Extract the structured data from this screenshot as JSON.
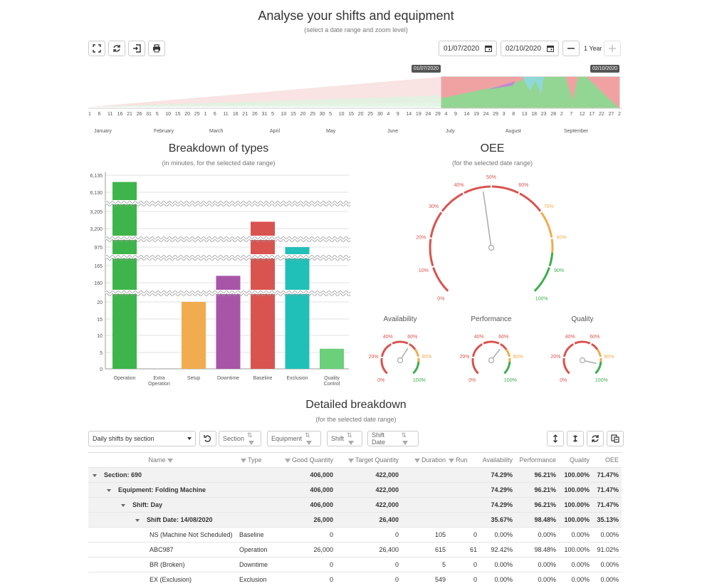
{
  "header": {
    "title": "Analyse your shifts and equipment",
    "subtitle": "(select a date range and zoom level)",
    "toolbar": [
      {
        "icon": "fullscreen-icon"
      },
      {
        "icon": "refresh-icon"
      },
      {
        "icon": "export-icon"
      },
      {
        "icon": "print-icon"
      }
    ],
    "date_from": "01/07/2020",
    "date_to": "02/10/2020",
    "zoom_label": "1 Year",
    "navigator_flags": {
      "left": "01/07/2020",
      "right": "02/10/2020"
    },
    "navigator_ticks": [
      "1",
      "6",
      "11",
      "16",
      "21",
      "26",
      "31",
      "5",
      "10",
      "15",
      "20",
      "25",
      "1",
      "6",
      "11",
      "16",
      "21",
      "26",
      "31",
      "5",
      "10",
      "15",
      "20",
      "25",
      "30",
      "5",
      "10",
      "15",
      "20",
      "25",
      "30",
      "4",
      "9",
      "14",
      "19",
      "24",
      "29",
      "4",
      "9",
      "14",
      "19",
      "24",
      "29",
      "3",
      "8",
      "13",
      "18",
      "23",
      "28",
      "2",
      "7",
      "12",
      "17",
      "22",
      "27",
      "2"
    ],
    "navigator_months": [
      "January",
      "February",
      "March",
      "April",
      "May",
      "June",
      "July",
      "August",
      "September"
    ]
  },
  "breakdown": {
    "title": "Breakdown of types",
    "subtitle": "(in minutes, for the selected date range)"
  },
  "oee": {
    "title": "OEE",
    "subtitle": "(for the selected date range)",
    "main_value": 0.47,
    "main_labels": [
      "0%",
      "10%",
      "20%",
      "30%",
      "40%",
      "50%",
      "60%",
      "70%",
      "80%",
      "90%",
      "100%"
    ],
    "small_gauges": [
      {
        "title": "Availability",
        "value": 0.62,
        "labels": [
          "0%",
          "20%",
          "40%",
          "60%",
          "80%",
          "100%"
        ]
      },
      {
        "title": "Performance",
        "value": 0.64,
        "labels": [
          "0%",
          "20%",
          "40%",
          "60%",
          "80%",
          "100%"
        ]
      },
      {
        "title": "Quality",
        "value": 0.88,
        "labels": [
          "0%",
          "20%",
          "40%",
          "60%",
          "80%",
          "100%"
        ]
      }
    ]
  },
  "chart_data": {
    "type": "bar",
    "title": "Breakdown of types",
    "subtitle": "(in minutes, for the selected date range)",
    "y_axis": "scale breaks",
    "y_ticks": [
      "6,135",
      "6,130",
      "3,205",
      "3,200",
      "975",
      "165",
      "160",
      "20",
      "15",
      "10",
      "5",
      "0"
    ],
    "categories": [
      "Operation",
      "Extra Operation",
      "Setup",
      "Downtime",
      "Baseline",
      "Exclusion",
      "Quality Control"
    ],
    "values": [
      6133,
      0,
      20,
      162,
      3202,
      970,
      6
    ],
    "colors": [
      "#3db54a",
      "#3db54a",
      "#f0ac4e",
      "#a855a8",
      "#d9534f",
      "#20c0b8",
      "#6ccf7a"
    ]
  },
  "detail": {
    "title": "Detailed breakdown",
    "subtitle": "(for the selected date range)",
    "grouping_select": "Daily shifts by section",
    "group_chips": [
      "Section",
      "Equipment",
      "Shift",
      "Shift Date"
    ],
    "columns": [
      "Name",
      "Type",
      "Good Quantity",
      "Target Quantity",
      "Duration",
      "Run",
      "Availability",
      "Performance",
      "Quality",
      "OEE"
    ],
    "rows": [
      {
        "level": 0,
        "group": true,
        "name": "Section: 690",
        "type": "",
        "good": "406,000",
        "target": "422,000",
        "duration": "",
        "run": "",
        "avail": "74.29%",
        "perf": "96.21%",
        "qual": "100.00%",
        "oee": "71.47%"
      },
      {
        "level": 1,
        "group": true,
        "name": "Equipment: Folding Machine",
        "type": "",
        "good": "406,000",
        "target": "422,000",
        "duration": "",
        "run": "",
        "avail": "74.29%",
        "perf": "96.21%",
        "qual": "100.00%",
        "oee": "71.47%"
      },
      {
        "level": 2,
        "group": true,
        "name": "Shift: Day",
        "type": "",
        "good": "406,000",
        "target": "422,000",
        "duration": "",
        "run": "",
        "avail": "74.29%",
        "perf": "96.21%",
        "qual": "100.00%",
        "oee": "71.47%"
      },
      {
        "level": 3,
        "group": true,
        "name": "Shift Date: 14/08/2020",
        "type": "",
        "good": "26,000",
        "target": "26,400",
        "duration": "",
        "run": "",
        "avail": "35.67%",
        "perf": "98.48%",
        "qual": "100.00%",
        "oee": "35.13%"
      },
      {
        "level": 4,
        "group": false,
        "name": "NS (Machine Not Scheduled)",
        "type": "Baseline",
        "good": "0",
        "target": "0",
        "duration": "105",
        "run": "0",
        "avail": "0.00%",
        "perf": "0.00%",
        "qual": "0.00%",
        "oee": "0.00%"
      },
      {
        "level": 4,
        "group": false,
        "name": "ABC987",
        "type": "Operation",
        "good": "26,000",
        "target": "26,400",
        "duration": "615",
        "run": "61",
        "avail": "92.42%",
        "perf": "98.48%",
        "qual": "100.00%",
        "oee": "91.02%"
      },
      {
        "level": 4,
        "group": false,
        "name": "BR (Broken)",
        "type": "Downtime",
        "good": "0",
        "target": "0",
        "duration": "5",
        "run": "0",
        "avail": "0.00%",
        "perf": "0.00%",
        "qual": "0.00%",
        "oee": "0.00%"
      },
      {
        "level": 4,
        "group": false,
        "name": "EX (Exclusion)",
        "type": "Exclusion",
        "good": "0",
        "target": "0",
        "duration": "549",
        "run": "0",
        "avail": "0.00%",
        "perf": "0.00%",
        "qual": "0.00%",
        "oee": "0.00%"
      }
    ]
  }
}
